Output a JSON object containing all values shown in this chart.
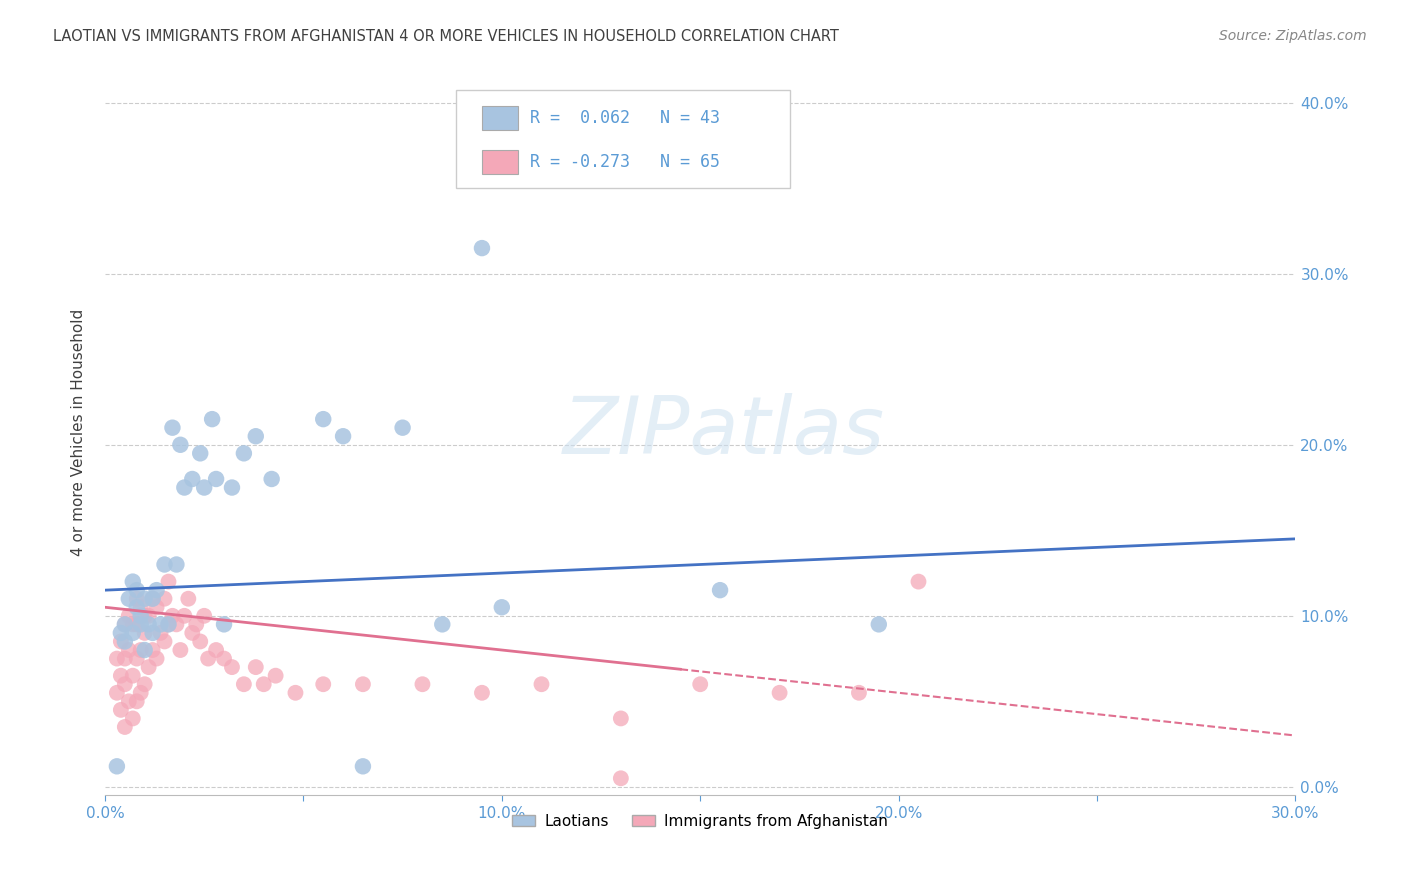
{
  "title": "LAOTIAN VS IMMIGRANTS FROM AFGHANISTAN 4 OR MORE VEHICLES IN HOUSEHOLD CORRELATION CHART",
  "source": "Source: ZipAtlas.com",
  "ylabel": "4 or more Vehicles in Household",
  "xlim": [
    0.0,
    0.3
  ],
  "ylim": [
    -0.005,
    0.42
  ],
  "x_ticks": [
    0.0,
    0.05,
    0.1,
    0.15,
    0.2,
    0.25,
    0.3
  ],
  "y_ticks": [
    0.0,
    0.1,
    0.2,
    0.3,
    0.4
  ],
  "x_tick_labels": [
    "0.0%",
    "",
    "10.0%",
    "",
    "20.0%",
    "",
    "30.0%"
  ],
  "y_tick_labels": [
    "0.0%",
    "10.0%",
    "20.0%",
    "30.0%",
    "40.0%"
  ],
  "legend_labels": [
    "Laotians",
    "Immigrants from Afghanistan"
  ],
  "laotian_R": 0.062,
  "laotian_N": 43,
  "afghan_R": -0.273,
  "afghan_N": 65,
  "laotian_color": "#a8c4e0",
  "afghan_color": "#f4a8b8",
  "laotian_line_color": "#4472c4",
  "afghan_line_color": "#e07090",
  "title_color": "#404040",
  "axis_color": "#5b9bd5",
  "grid_color": "#cccccc",
  "watermark_text": "ZIPatlas",
  "laotian_x": [
    0.003,
    0.004,
    0.005,
    0.005,
    0.006,
    0.007,
    0.007,
    0.008,
    0.008,
    0.009,
    0.009,
    0.01,
    0.01,
    0.011,
    0.012,
    0.012,
    0.013,
    0.014,
    0.015,
    0.016,
    0.017,
    0.018,
    0.019,
    0.02,
    0.022,
    0.024,
    0.025,
    0.027,
    0.028,
    0.03,
    0.032,
    0.035,
    0.038,
    0.042,
    0.055,
    0.06,
    0.065,
    0.075,
    0.085,
    0.095,
    0.1,
    0.155,
    0.195
  ],
  "laotian_y": [
    0.012,
    0.09,
    0.085,
    0.095,
    0.11,
    0.09,
    0.12,
    0.105,
    0.115,
    0.1,
    0.095,
    0.08,
    0.11,
    0.095,
    0.11,
    0.09,
    0.115,
    0.095,
    0.13,
    0.095,
    0.21,
    0.13,
    0.2,
    0.175,
    0.18,
    0.195,
    0.175,
    0.215,
    0.18,
    0.095,
    0.175,
    0.195,
    0.205,
    0.18,
    0.215,
    0.205,
    0.012,
    0.21,
    0.095,
    0.315,
    0.105,
    0.115,
    0.095
  ],
  "afghan_x": [
    0.003,
    0.003,
    0.004,
    0.004,
    0.004,
    0.005,
    0.005,
    0.005,
    0.005,
    0.006,
    0.006,
    0.006,
    0.007,
    0.007,
    0.007,
    0.008,
    0.008,
    0.008,
    0.008,
    0.009,
    0.009,
    0.009,
    0.01,
    0.01,
    0.01,
    0.011,
    0.011,
    0.012,
    0.012,
    0.013,
    0.013,
    0.014,
    0.015,
    0.015,
    0.016,
    0.016,
    0.017,
    0.018,
    0.019,
    0.02,
    0.021,
    0.022,
    0.023,
    0.024,
    0.025,
    0.026,
    0.028,
    0.03,
    0.032,
    0.035,
    0.038,
    0.04,
    0.043,
    0.048,
    0.055,
    0.065,
    0.08,
    0.095,
    0.11,
    0.13,
    0.15,
    0.17,
    0.19,
    0.205,
    0.13
  ],
  "afghan_y": [
    0.055,
    0.075,
    0.045,
    0.065,
    0.085,
    0.035,
    0.06,
    0.075,
    0.095,
    0.05,
    0.08,
    0.1,
    0.04,
    0.065,
    0.095,
    0.05,
    0.075,
    0.095,
    0.11,
    0.055,
    0.08,
    0.105,
    0.06,
    0.09,
    0.1,
    0.07,
    0.1,
    0.08,
    0.11,
    0.075,
    0.105,
    0.09,
    0.085,
    0.11,
    0.095,
    0.12,
    0.1,
    0.095,
    0.08,
    0.1,
    0.11,
    0.09,
    0.095,
    0.085,
    0.1,
    0.075,
    0.08,
    0.075,
    0.07,
    0.06,
    0.07,
    0.06,
    0.065,
    0.055,
    0.06,
    0.06,
    0.06,
    0.055,
    0.06,
    0.04,
    0.06,
    0.055,
    0.055,
    0.12,
    0.005
  ],
  "laotian_line_start_x": 0.0,
  "laotian_line_end_x": 0.3,
  "laotian_line_start_y": 0.115,
  "laotian_line_end_y": 0.145,
  "afghan_line_start_x": 0.0,
  "afghan_line_solid_end_x": 0.145,
  "afghan_line_end_x": 0.3,
  "afghan_line_start_y": 0.105,
  "afghan_line_end_y": 0.03
}
